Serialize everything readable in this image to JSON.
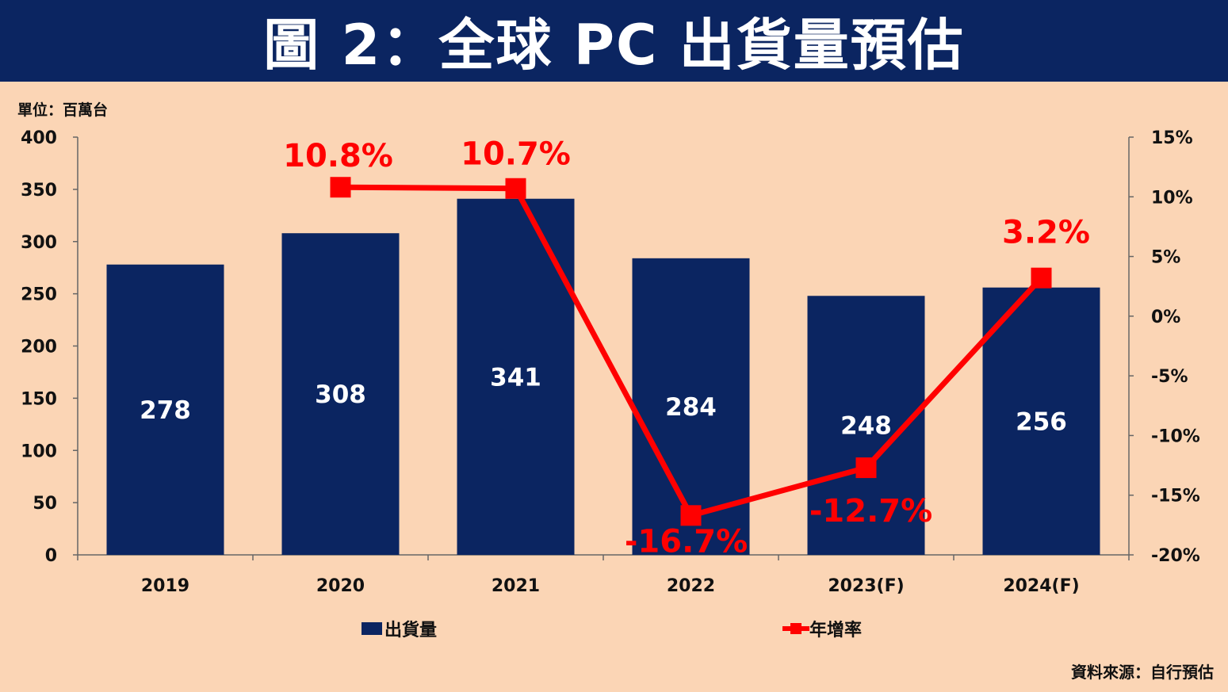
{
  "title": "圖 2：全球 PC 出貨量預估",
  "unit": "單位：百萬台",
  "source": "資料來源：自行預估",
  "chart_data": {
    "type": "bar",
    "categories": [
      "2019",
      "2020",
      "2021",
      "2022",
      "2023(F)",
      "2024(F)"
    ],
    "series": [
      {
        "name": "出貨量",
        "type": "bar",
        "axis": "left",
        "color": "#0b2561",
        "values": [
          278,
          308,
          341,
          284,
          248,
          256
        ],
        "labels": [
          "278",
          "308",
          "341",
          "284",
          "248",
          "256"
        ]
      },
      {
        "name": "年增率",
        "type": "line",
        "axis": "right",
        "color": "#ff0000",
        "values": [
          null,
          10.8,
          10.7,
          -16.7,
          -12.7,
          3.2
        ],
        "labels": [
          "",
          "10.8%",
          "10.7%",
          "-16.7%",
          "-12.7%",
          "3.2%"
        ]
      }
    ],
    "left_axis": {
      "ylim": [
        0,
        400
      ],
      "ticks": [
        0,
        50,
        100,
        150,
        200,
        250,
        300,
        350,
        400
      ],
      "tick_labels": [
        "0",
        "50",
        "100",
        "150",
        "200",
        "250",
        "300",
        "350",
        "400"
      ]
    },
    "right_axis": {
      "ylim": [
        -20,
        15
      ],
      "ticks": [
        -20,
        -15,
        -10,
        -5,
        0,
        5,
        10,
        15
      ],
      "tick_labels": [
        "-20%",
        "-15%",
        "-10%",
        "-5%",
        "0%",
        "5%",
        "10%",
        "15%"
      ]
    },
    "grid": false,
    "legend_position": "bottom"
  }
}
